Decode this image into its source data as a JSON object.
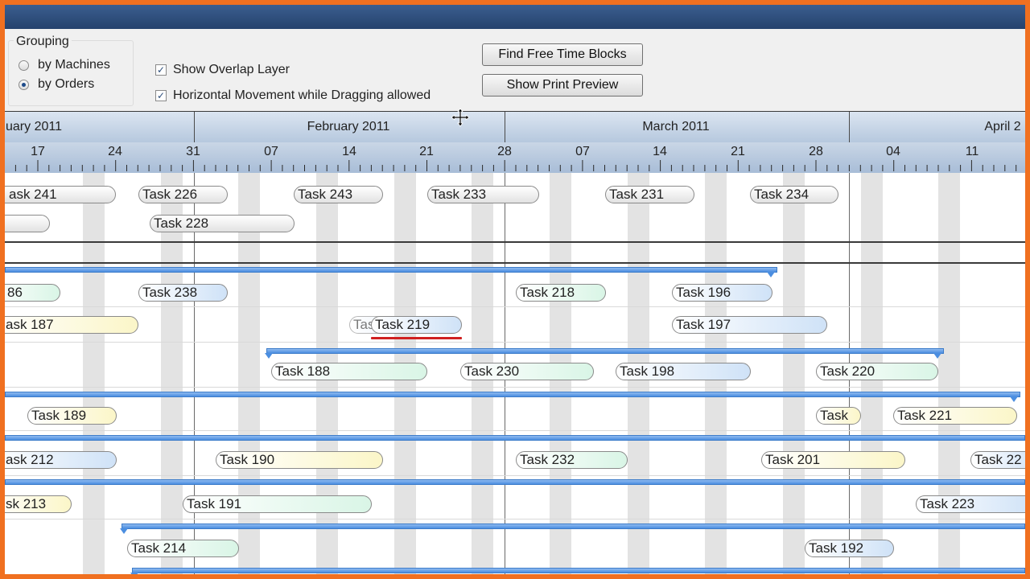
{
  "colors": {
    "frame": "#f07020",
    "summary_bar": "#4b8ee0"
  },
  "grouping": {
    "legend": "Grouping",
    "options": [
      {
        "label": "by Machines",
        "selected": false
      },
      {
        "label": "by Orders",
        "selected": true
      }
    ]
  },
  "options": {
    "show_overlap": {
      "label": "Show Overlap Layer",
      "checked": true
    },
    "horizontal_movement": {
      "label": "Horizontal Movement while Dragging allowed",
      "checked": true
    }
  },
  "buttons": {
    "find_free": "Find Free Time Blocks",
    "print_preview": "Show Print Preview"
  },
  "timeline": {
    "months": [
      "uary 2011",
      "February 2011",
      "March 2011",
      "April 2"
    ],
    "days": [
      "17",
      "24",
      "31",
      "07",
      "14",
      "21",
      "28",
      "07",
      "14",
      "21",
      "28",
      "04",
      "11"
    ]
  },
  "tasks": {
    "t241": "ask 241",
    "t226": "Task 226",
    "t243": "Task 243",
    "t233": "Task 233",
    "t231": "Task 231",
    "t234": "Task 234",
    "t228": "Task 228",
    "t186": "86",
    "t238": "Task 238",
    "t218": "Task 218",
    "t196": "Task 196",
    "t187": "ask 187",
    "t219_ghost": "Task 219",
    "t219": "Task 219",
    "t197": "Task 197",
    "t188": "Task 188",
    "t230": "Task 230",
    "t198": "Task 198",
    "t220": "Task 220",
    "t189": "Task 189",
    "t221a": "Task",
    "t221": "Task 221",
    "t212": "ask 212",
    "t190": "Task 190",
    "t232": "Task 232",
    "t201": "Task 201",
    "t222": "Task 22",
    "t213": "sk 213",
    "t191": "Task 191",
    "t223": "Task 223",
    "t214": "Task 214",
    "t192": "Task 192"
  }
}
